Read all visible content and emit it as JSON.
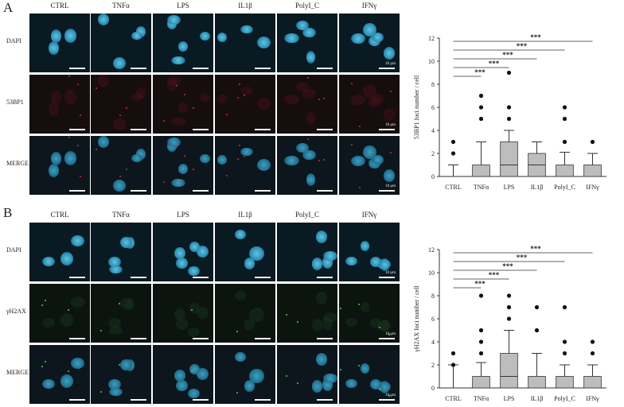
{
  "figure": {
    "panels": [
      {
        "letter": "A",
        "columns": [
          "CTRL",
          "TNFα",
          "LPS",
          "IL1β",
          "PolyI_C",
          "IFNγ"
        ],
        "rows": [
          "DAPI",
          "53BP1",
          "MERGE"
        ],
        "scale_label": "10 μm"
      },
      {
        "letter": "B",
        "columns": [
          "CTRL",
          "TNFα",
          "LPS",
          "IL1β",
          "PolyI_C",
          "IFNγ"
        ],
        "rows": [
          "DAPI",
          "γH2AX",
          "MERGE"
        ],
        "scale_label": "10 μm"
      }
    ]
  },
  "colors": {
    "dapi": "#3aa6c8",
    "foci_53bp1": "#c2303c",
    "foci_h2ax": "#4fd04a",
    "box": "#bdbdbd"
  },
  "chart_data": [
    {
      "type": "box",
      "ylabel": "53BP1 foci number / cell",
      "ylim": [
        0,
        12
      ],
      "yticks": [
        0,
        2,
        4,
        6,
        8,
        10,
        12
      ],
      "categories": [
        "CTRL",
        "TNFα",
        "LPS",
        "IL1β",
        "PolyI_C",
        "IFNγ"
      ],
      "boxes": [
        {
          "q1": 0,
          "median": 0,
          "q3": 0,
          "whisker_low": 0,
          "whisker_high": 1,
          "outliers": [
            2,
            3
          ]
        },
        {
          "q1": 0,
          "median": 0,
          "q3": 1,
          "whisker_low": 0,
          "whisker_high": 3,
          "outliers": [
            5,
            6,
            7
          ]
        },
        {
          "q1": 0,
          "median": 1,
          "q3": 3,
          "whisker_low": 0,
          "whisker_high": 4,
          "outliers": [
            5,
            6,
            9
          ]
        },
        {
          "q1": 0,
          "median": 1,
          "q3": 2,
          "whisker_low": 0,
          "whisker_high": 3,
          "outliers": []
        },
        {
          "q1": 0,
          "median": 0,
          "q3": 1,
          "whisker_low": 0,
          "whisker_high": 2.1,
          "outliers": [
            3,
            5,
            6
          ]
        },
        {
          "q1": 0,
          "median": 0,
          "q3": 1,
          "whisker_low": 0,
          "whisker_high": 2,
          "outliers": [
            3
          ]
        }
      ],
      "significance": [
        {
          "from": "CTRL",
          "to": "TNFα",
          "label": "***"
        },
        {
          "from": "CTRL",
          "to": "LPS",
          "label": "***"
        },
        {
          "from": "CTRL",
          "to": "IL1β",
          "label": "***"
        },
        {
          "from": "CTRL",
          "to": "PolyI_C",
          "label": "***"
        },
        {
          "from": "CTRL",
          "to": "IFNγ",
          "label": "***"
        }
      ]
    },
    {
      "type": "box",
      "ylabel": "γH2AX foci number / cell",
      "ylim": [
        0,
        12
      ],
      "yticks": [
        0,
        2,
        4,
        6,
        8,
        10,
        12
      ],
      "categories": [
        "CTRL",
        "TNFα",
        "LPS",
        "IL1β",
        "PolyI_C",
        "IFNγ"
      ],
      "boxes": [
        {
          "q1": 0,
          "median": 0,
          "q3": 0,
          "whisker_low": 0,
          "whisker_high": 2,
          "outliers": [
            2,
            3
          ]
        },
        {
          "q1": 0,
          "median": 0,
          "q3": 1,
          "whisker_low": 0,
          "whisker_high": 2.2,
          "outliers": [
            3,
            4,
            5,
            8
          ]
        },
        {
          "q1": 0,
          "median": 1,
          "q3": 3,
          "whisker_low": 0,
          "whisker_high": 5,
          "outliers": [
            6,
            7,
            8
          ]
        },
        {
          "q1": 0,
          "median": 0,
          "q3": 1,
          "whisker_low": 0,
          "whisker_high": 3,
          "outliers": [
            5,
            7
          ]
        },
        {
          "q1": 0,
          "median": 0,
          "q3": 1,
          "whisker_low": 0,
          "whisker_high": 2,
          "outliers": [
            3,
            4,
            7
          ]
        },
        {
          "q1": 0,
          "median": 0,
          "q3": 1,
          "whisker_low": 0,
          "whisker_high": 2,
          "outliers": [
            3,
            4
          ]
        }
      ],
      "significance": [
        {
          "from": "CTRL",
          "to": "TNFα",
          "label": "***"
        },
        {
          "from": "CTRL",
          "to": "LPS",
          "label": "***"
        },
        {
          "from": "CTRL",
          "to": "IL1β",
          "label": "***"
        },
        {
          "from": "CTRL",
          "to": "PolyI_C",
          "label": "***"
        },
        {
          "from": "CTRL",
          "to": "IFNγ",
          "label": "***"
        }
      ]
    }
  ]
}
